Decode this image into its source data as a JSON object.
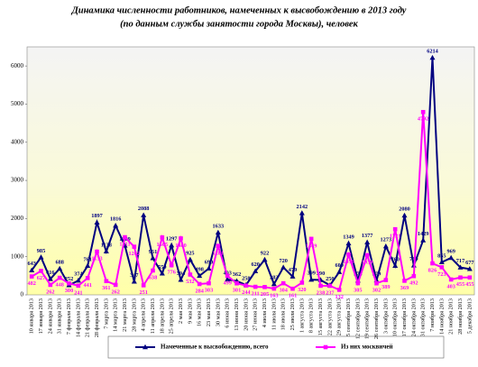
{
  "chart_data": {
    "type": "line",
    "title": "Динамика численности работников, намеченных к высвобождению в 2013 году",
    "subtitle": "(по данным службы занятости города Москвы), человек",
    "categories": [
      "10 января 2013",
      "17 января 2013",
      "24 января 2013",
      "31 января 2013",
      "7 февраля 2013",
      "14 февраля 2013",
      "21 февраля 2013",
      "28 февраля 2013",
      "7 марта 2013",
      "14 марта 2013",
      "21 марта 2013",
      "28 марта 2013",
      "4 апреля 2013",
      "11 апреля 2013",
      "18 апреля 2013",
      "25 апреля 2013",
      "2 мая 2013",
      "9 мая 2013",
      "16 мая 2013",
      "23 мая 2013",
      "30 мая 2013",
      "6 июня 2013",
      "13 июня 2013",
      "20 июня 2013",
      "27 июня 2013",
      "4 июля 2013",
      "11 июля 2013",
      "18 июля 2013",
      "25 июля 2013",
      "1 августа 2013",
      "8 августа 2013",
      "15 августа 2013",
      "22 августа 2013",
      "29 августа 2013",
      "5 сентября 2013",
      "12 сентября 2013",
      "19 сентября 2013",
      "26 сентября 2013",
      "3 октября 2013",
      "10 октября 2013",
      "17 октября 2013",
      "24 октября 2013",
      "31 октября 2013",
      "7 ноября 2013",
      "14 ноября 2013",
      "21 ноября 2013",
      "28 ноября 2013",
      "5 декабря 2013"
    ],
    "series": [
      {
        "name": "Намеченные к высвобождению, всего",
        "color": "#000080",
        "marker": "triangle",
        "values": [
          643,
          985,
          416,
          688,
          252,
          374,
          761,
          1897,
          1138,
          1816,
          1289,
          347,
          2088,
          961,
          559,
          1297,
          394,
          925,
          498,
          690,
          1633,
          403,
          362,
          258,
          620,
          922,
          283,
          720,
          479,
          2142,
          399,
          390,
          250,
          600,
          1349,
          374,
          1377,
          379,
          1273,
          760,
          2080,
          769,
          1429,
          6214,
          855,
          969,
          717,
          677
        ]
      },
      {
        "name": "Из них москвичей",
        "color": "#ff00ff",
        "marker": "square",
        "values": [
          482,
          627,
          262,
          448,
          300,
          241,
          441,
          1133,
          361,
          262,
          1511,
          1262,
          251,
          638,
          1505,
          776,
          1480,
          532,
          284,
          303,
          1281,
          499,
          301,
          244,
          211,
          205,
          163,
          304,
          161,
          320,
          1469,
          238,
          237,
          132,
          1056,
          305,
          1039,
          302,
          389,
          1721,
          369,
          492,
          4792,
          826,
          723,
          403,
          455,
          455
        ]
      }
    ],
    "ylim": [
      0,
      6500
    ],
    "yticks": [
      0,
      1000,
      2000,
      3000,
      4000,
      5000,
      6000
    ],
    "grid": false,
    "legend": "bottom"
  }
}
